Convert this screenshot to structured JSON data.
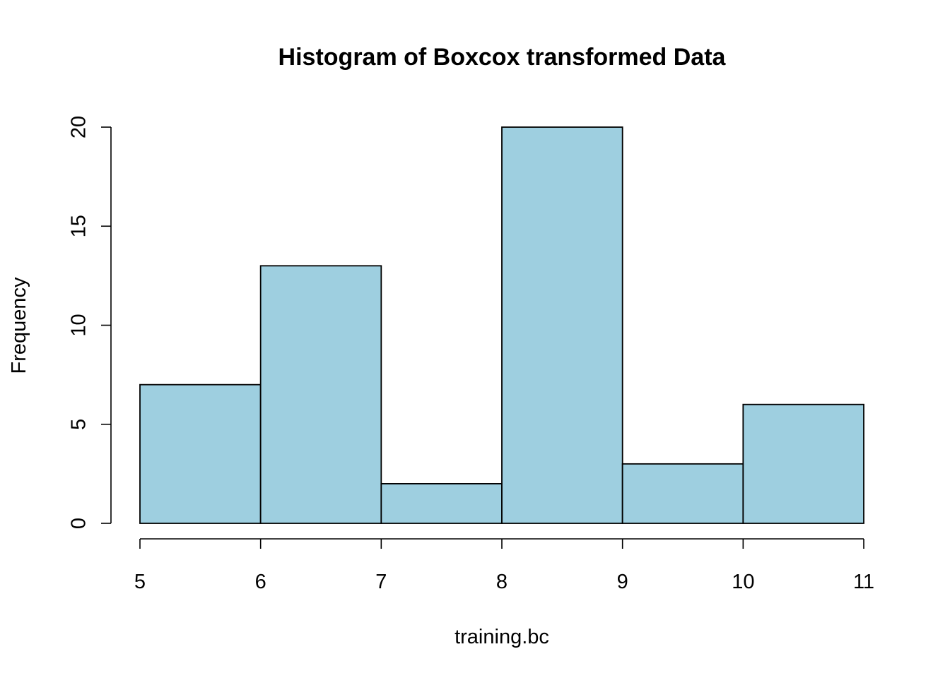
{
  "chart_data": {
    "type": "bar",
    "subtype": "histogram",
    "title": "Histogram of Boxcox transformed Data",
    "xlabel": "training.bc",
    "ylabel": "Frequency",
    "bins": [
      {
        "start": 5,
        "end": 6,
        "count": 7
      },
      {
        "start": 6,
        "end": 7,
        "count": 13
      },
      {
        "start": 7,
        "end": 8,
        "count": 2
      },
      {
        "start": 8,
        "end": 9,
        "count": 20
      },
      {
        "start": 9,
        "end": 10,
        "count": 3
      },
      {
        "start": 10,
        "end": 11,
        "count": 6
      }
    ],
    "xlim": [
      5,
      11
    ],
    "ylim": [
      0,
      20
    ],
    "x_ticks": [
      5,
      6,
      7,
      8,
      9,
      10,
      11
    ],
    "x_tick_labels": [
      "5",
      "6",
      "7",
      "8",
      "9",
      "10",
      "11"
    ],
    "y_ticks": [
      0,
      5,
      10,
      15,
      20
    ],
    "y_tick_labels": [
      "0",
      "5",
      "10",
      "15",
      "20"
    ],
    "bar_color": "#9ecfe0",
    "edge_color": "#000000",
    "grid": false,
    "legend": "none"
  }
}
